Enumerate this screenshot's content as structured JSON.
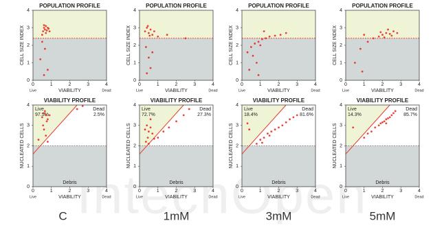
{
  "chart_data": [
    {
      "type": "scatter",
      "title": "POPULATION PROFILE",
      "x_label": "VIABILITY",
      "y_label": "CELL SIZE INDEX",
      "x_end_labels": [
        "Live",
        "Dead"
      ],
      "xlim": [
        0,
        4
      ],
      "ylim": [
        0,
        4
      ],
      "xticks": [
        0,
        1,
        2,
        3,
        4
      ],
      "yticks": [
        0,
        1,
        2,
        3,
        4
      ],
      "threshold": 2.4,
      "color": "#e8241a",
      "x": [
        0.55,
        0.6,
        0.65,
        0.7,
        0.75,
        0.8,
        0.85,
        0.7,
        0.6,
        0.9,
        0.5,
        0.65,
        0.4,
        0.8,
        0.5,
        0.6
      ],
      "y": [
        2.8,
        3.0,
        2.9,
        3.1,
        2.85,
        3.0,
        2.95,
        2.7,
        3.15,
        2.8,
        2.6,
        1.8,
        1.2,
        0.6,
        2.2,
        0.3
      ]
    },
    {
      "type": "scatter",
      "title": "POPULATION PROFILE",
      "x_label": "VIABILITY",
      "y_label": "CELL SIZE INDEX",
      "x_end_labels": [
        "Live",
        "Dead"
      ],
      "xlim": [
        0,
        4
      ],
      "ylim": [
        0,
        4
      ],
      "xticks": [
        0,
        1,
        2,
        3,
        4
      ],
      "yticks": [
        0,
        1,
        2,
        3,
        4
      ],
      "threshold": 2.4,
      "color": "#e8241a",
      "x": [
        0.3,
        0.4,
        0.5,
        0.6,
        0.7,
        0.45,
        0.55,
        0.8,
        1.0,
        0.35,
        0.5,
        0.6,
        1.5,
        2.5,
        0.4,
        0.7
      ],
      "y": [
        2.8,
        3.0,
        2.7,
        2.9,
        2.6,
        3.1,
        2.55,
        2.8,
        2.5,
        1.9,
        1.3,
        0.7,
        2.6,
        2.4,
        0.4,
        1.6
      ]
    },
    {
      "type": "scatter",
      "title": "POPULATION PROFILE",
      "x_label": "VIABILITY",
      "y_label": "CELL SIZE INDEX",
      "x_end_labels": [
        "Live",
        "Dead"
      ],
      "xlim": [
        0,
        4
      ],
      "ylim": [
        0,
        4
      ],
      "xticks": [
        0,
        1,
        2,
        3,
        4
      ],
      "yticks": [
        0,
        1,
        2,
        3,
        4
      ],
      "threshold": 2.4,
      "color": "#e8241a",
      "x": [
        0.3,
        0.5,
        0.7,
        0.9,
        1.1,
        1.3,
        1.5,
        1.8,
        2.1,
        2.4,
        0.6,
        0.8,
        1.0,
        0.4,
        1.2,
        0.9
      ],
      "y": [
        1.6,
        1.9,
        2.1,
        2.2,
        2.35,
        2.4,
        2.5,
        2.55,
        2.6,
        2.7,
        1.4,
        1.0,
        2.0,
        0.6,
        2.8,
        0.3
      ]
    },
    {
      "type": "scatter",
      "title": "POPULATION PROFILE",
      "x_label": "VIABILITY",
      "y_label": "CELL SIZE INDEX",
      "x_end_labels": [
        "Live",
        "Dead"
      ],
      "xlim": [
        0,
        4
      ],
      "ylim": [
        0,
        4
      ],
      "xticks": [
        0,
        1,
        2,
        3,
        4
      ],
      "yticks": [
        0,
        1,
        2,
        3,
        4
      ],
      "threshold": 2.4,
      "color": "#e8241a",
      "x": [
        1.8,
        2.0,
        2.2,
        2.4,
        2.6,
        2.1,
        2.3,
        1.5,
        1.2,
        0.8,
        2.5,
        1.9,
        0.5,
        0.9,
        2.8,
        1.0
      ],
      "y": [
        2.5,
        2.6,
        2.7,
        2.65,
        2.8,
        2.45,
        2.9,
        2.4,
        2.2,
        1.8,
        2.55,
        2.75,
        1.0,
        0.5,
        2.7,
        2.6
      ]
    },
    {
      "type": "scatter",
      "title": "VIABILITY PROFILE",
      "x_label": "VIABILITY",
      "y_label": "NUCLEATED CELLS",
      "x_end_labels": [
        "Live",
        "Dead"
      ],
      "xlim": [
        0,
        4
      ],
      "ylim": [
        0,
        4
      ],
      "xticks": [
        0,
        1,
        2,
        3,
        4
      ],
      "yticks": [
        0,
        1,
        2,
        3,
        4
      ],
      "threshold": 2,
      "gate_intercept": 1.6,
      "gate_names": [
        "Live",
        "Dead"
      ],
      "gate_values": [
        97.5,
        2.5
      ],
      "gate_value_labels": [
        "97.5%",
        "2.5%"
      ],
      "debris_label": "Debris",
      "color": "#e8241a",
      "x": [
        0.5,
        0.6,
        0.7,
        0.8,
        0.65,
        0.75,
        0.55,
        0.9,
        0.6,
        0.7,
        0.3,
        2.4,
        2.7,
        0.8
      ],
      "y": [
        3.4,
        3.6,
        3.5,
        3.3,
        3.7,
        3.2,
        3.0,
        3.5,
        2.8,
        2.5,
        2.3,
        3.8,
        3.95,
        2.2
      ]
    },
    {
      "type": "scatter",
      "title": "VIABILITY PROFILE",
      "x_label": "VIABILITY",
      "y_label": "NUCLEATED CELLS",
      "x_end_labels": [
        "Live",
        "Dead"
      ],
      "xlim": [
        0,
        4
      ],
      "ylim": [
        0,
        4
      ],
      "xticks": [
        0,
        1,
        2,
        3,
        4
      ],
      "yticks": [
        0,
        1,
        2,
        3,
        4
      ],
      "threshold": 2,
      "gate_intercept": 1.6,
      "gate_names": [
        "Live",
        "Dead"
      ],
      "gate_values": [
        72.7,
        27.3
      ],
      "gate_value_labels": [
        "72.7%",
        "27.3%"
      ],
      "debris_label": "Debris",
      "color": "#e8241a",
      "x": [
        0.3,
        0.4,
        0.5,
        0.6,
        0.45,
        0.35,
        0.7,
        0.8,
        1.0,
        1.3,
        1.6,
        2.0,
        2.4,
        2.7,
        0.5,
        0.6
      ],
      "y": [
        2.8,
        3.0,
        2.7,
        2.9,
        2.4,
        2.2,
        2.6,
        2.35,
        2.4,
        2.7,
        2.9,
        3.2,
        3.5,
        3.8,
        2.1,
        3.3
      ]
    },
    {
      "type": "scatter",
      "title": "VIABILITY PROFILE",
      "x_label": "VIABILITY",
      "y_label": "NUCLEATED CELLS",
      "x_end_labels": [
        "Live",
        "Dead"
      ],
      "xlim": [
        0,
        4
      ],
      "ylim": [
        0,
        4
      ],
      "xticks": [
        0,
        1,
        2,
        3,
        4
      ],
      "yticks": [
        0,
        1,
        2,
        3,
        4
      ],
      "threshold": 2,
      "gate_intercept": 1.6,
      "gate_names": [
        "Live",
        "Dead"
      ],
      "gate_values": [
        18.4,
        81.6
      ],
      "gate_value_labels": [
        "18.4%",
        "81.6%"
      ],
      "debris_label": "Debris",
      "color": "#e8241a",
      "x": [
        0.8,
        1.0,
        1.2,
        1.4,
        1.6,
        1.8,
        2.0,
        2.2,
        2.4,
        2.6,
        2.8,
        3.0,
        1.5,
        1.1,
        0.4,
        0.3
      ],
      "y": [
        2.1,
        2.3,
        2.4,
        2.6,
        2.7,
        2.8,
        2.9,
        3.0,
        3.15,
        3.3,
        3.4,
        3.5,
        2.5,
        2.15,
        2.8,
        3.1
      ]
    },
    {
      "type": "scatter",
      "title": "VIABILITY PROFILE",
      "x_label": "VIABILITY",
      "y_label": "NUCLEATED CELLS",
      "x_end_labels": [
        "Live",
        "Dead"
      ],
      "xlim": [
        0,
        4
      ],
      "ylim": [
        0,
        4
      ],
      "xticks": [
        0,
        1,
        2,
        3,
        4
      ],
      "yticks": [
        0,
        1,
        2,
        3,
        4
      ],
      "threshold": 2,
      "gate_intercept": 1.6,
      "gate_names": [
        "Live",
        "Dead"
      ],
      "gate_values": [
        14.3,
        85.7
      ],
      "gate_value_labels": [
        "14.3%",
        "85.7%"
      ],
      "debris_label": "Debris",
      "color": "#e8241a",
      "x": [
        1.8,
        2.0,
        2.2,
        2.4,
        2.6,
        2.1,
        2.3,
        2.5,
        1.6,
        1.4,
        1.2,
        1.0,
        2.7,
        0.4,
        2.2,
        1.9
      ],
      "y": [
        3.0,
        3.15,
        3.3,
        3.4,
        3.6,
        3.2,
        3.35,
        3.5,
        2.9,
        2.7,
        2.6,
        2.4,
        3.7,
        2.9,
        3.1,
        3.1
      ]
    }
  ],
  "conditions": [
    "C",
    "1mM",
    "3mM",
    "5mM"
  ],
  "watermark": "IntechOpen"
}
